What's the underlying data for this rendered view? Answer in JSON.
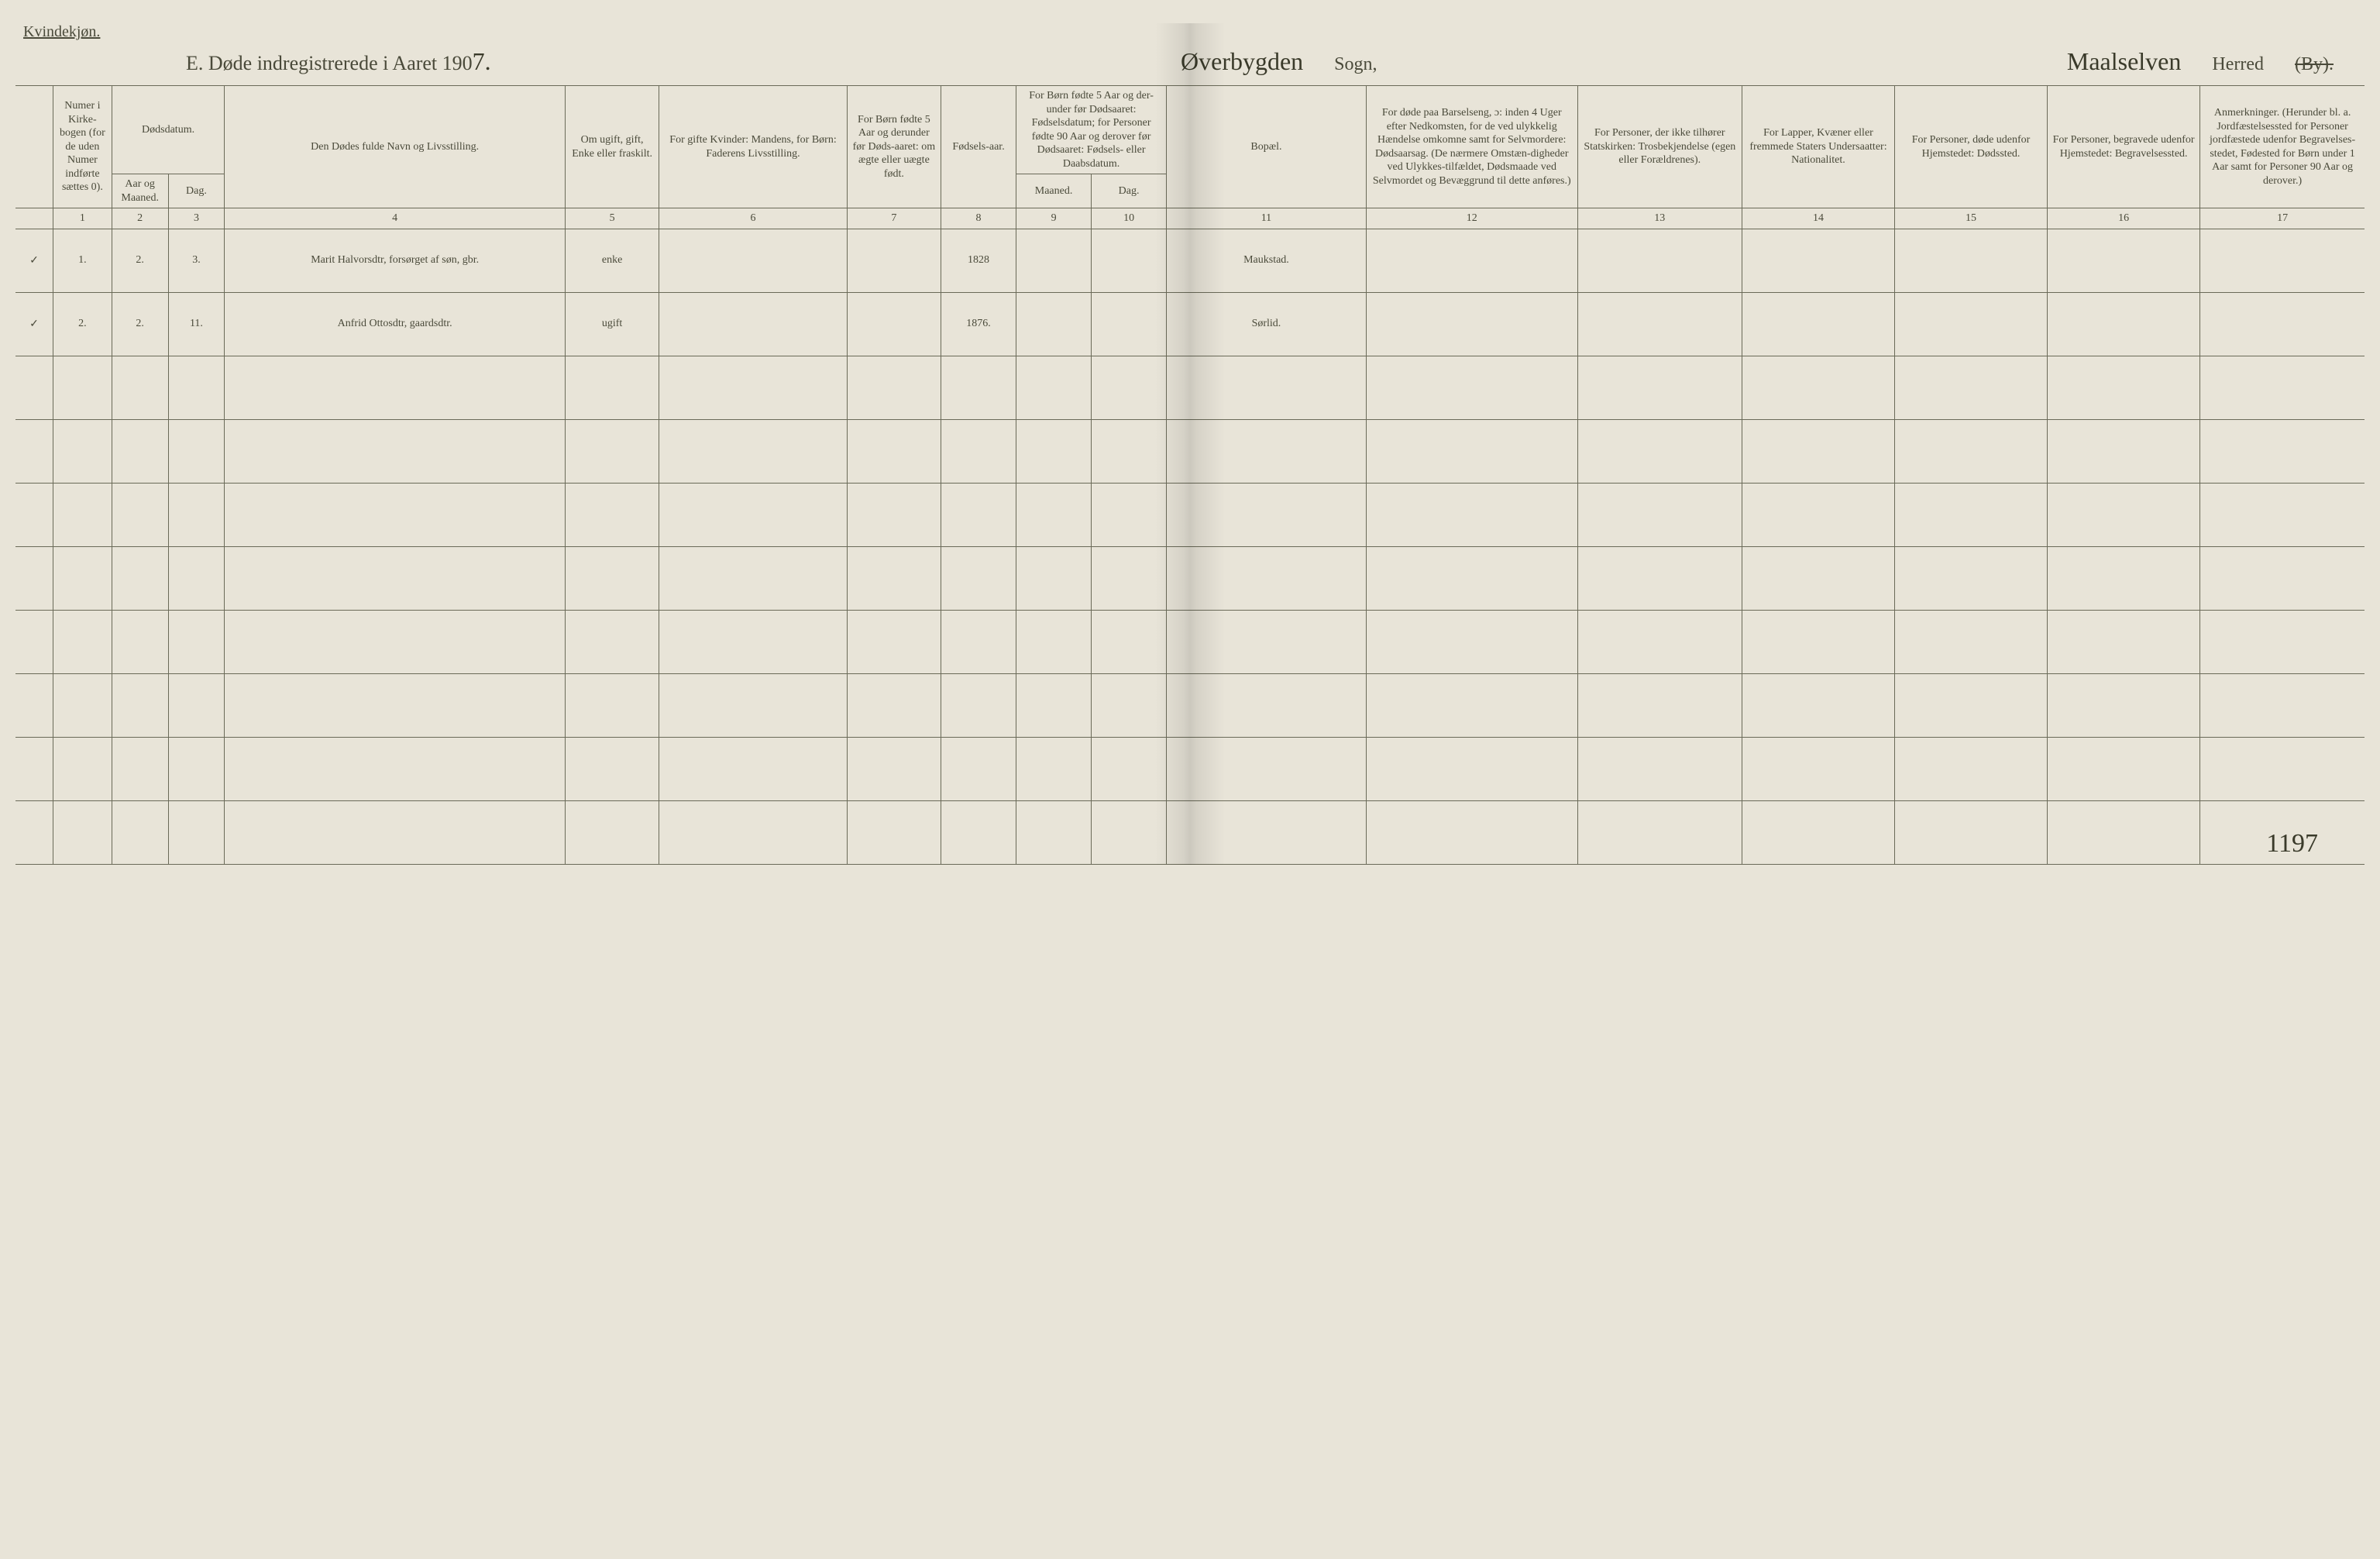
{
  "page": {
    "background_color": "#e8e4d8",
    "text_color": "#4a4a3a",
    "handwriting_color": "#2f2f22",
    "border_color": "#6a6a58"
  },
  "top_label": "Kvindekjøn.",
  "title": {
    "prefix": "E.  Døde indregistrerede i Aaret 190",
    "year_suffix": "7.",
    "parish_handwritten": "Øverbygden",
    "parish_label": "Sogn,",
    "district_handwritten": "Maalselven",
    "district_label": "Herred",
    "struck": "(By)."
  },
  "headers": {
    "col1": "Numer i Kirke-bogen (for de uden Numer indførte sættes 0).",
    "col2_top": "Dødsdatum.",
    "col2_a": "Aar og Maaned.",
    "col2_b": "Dag.",
    "col4": "Den Dødes fulde Navn og Livsstilling.",
    "col5": "Om ugift, gift, Enke eller fraskilt.",
    "col6": "For gifte Kvinder: Mandens, for Børn: Faderens Livsstilling.",
    "col7": "For Børn fødte 5 Aar og derunder før Døds-aaret: om ægte eller uægte født.",
    "col8": "Fødsels-aar.",
    "col9_10_top": "For Børn fødte 5 Aar og der-under før Dødsaaret: Fødselsdatum; for Personer fødte 90 Aar og derover før Dødsaaret: Fødsels- eller Daabsdatum.",
    "col9": "Maaned.",
    "col10": "Dag.",
    "col11": "Bopæl.",
    "col12": "For døde paa Barselseng, ɔ: inden 4 Uger efter Nedkomsten, for de ved ulykkelig Hændelse omkomne samt for Selvmordere: Dødsaarsag. (De nærmere Omstæn-digheder ved Ulykkes-tilfældet, Dødsmaade ved Selvmordet og Bevæggrund til dette anføres.)",
    "col13": "For Personer, der ikke tilhører Statskirken: Trosbekjendelse (egen eller Forældrenes).",
    "col14": "For Lapper, Kvæner eller fremmede Staters Undersaatter: Nationalitet.",
    "col15": "For Personer, døde udenfor Hjemstedet: Dødssted.",
    "col16": "For Personer, begravede udenfor Hjemstedet: Begravelsessted.",
    "col17": "Anmerkninger. (Herunder bl. a. Jordfæstelsessted for Personer jordfæstede udenfor Begravelses-stedet, Fødested for Børn under 1 Aar samt for Personer 90 Aar og derover.)"
  },
  "col_nums": [
    "1",
    "2",
    "3",
    "4",
    "5",
    "6",
    "7",
    "8",
    "9",
    "10",
    "11",
    "12",
    "13",
    "14",
    "15",
    "16",
    "17"
  ],
  "rows": [
    {
      "tick": "✓",
      "no": "1.",
      "month": "2.",
      "day": "3.",
      "name": "Marit Halvorsdtr, forsørget af søn, gbr.",
      "status": "enke",
      "col6": "",
      "col7": "",
      "birth_year": "1828",
      "c9": "",
      "c10": "",
      "residence": "Maukstad.",
      "c12": "",
      "c13": "",
      "c14": "",
      "c15": "",
      "c16": "",
      "c17": ""
    },
    {
      "tick": "✓",
      "no": "2.",
      "month": "2.",
      "day": "11.",
      "name": "Anfrid Ottosdtr, gaardsdtr.",
      "status": "ugift",
      "col6": "",
      "col7": "",
      "birth_year": "1876.",
      "c9": "",
      "c10": "",
      "residence": "Sørlid.",
      "c12": "",
      "c13": "",
      "c14": "",
      "c15": "",
      "c16": "",
      "c17": ""
    }
  ],
  "empty_row_count": 8,
  "page_number": "1197"
}
